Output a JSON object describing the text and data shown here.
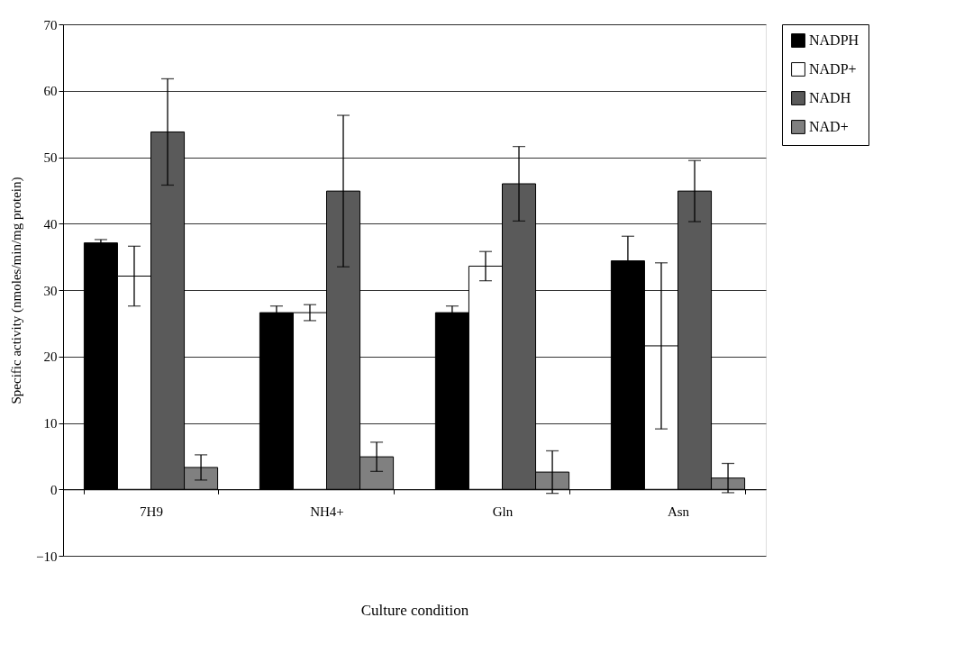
{
  "chart_data": {
    "type": "bar",
    "xlabel": "Culture condition",
    "ylabel": "Specific activity (nmoles/min/mg protein)",
    "categories": [
      "7H9",
      "NH4+",
      "Gln",
      "Asn"
    ],
    "series": [
      {
        "name": "NADPH",
        "color": "#000000",
        "values": [
          37.1,
          26.6,
          26.6,
          34.4
        ],
        "errors": [
          0.5,
          1.0,
          1.0,
          3.7
        ]
      },
      {
        "name": "NADP+",
        "color": "#ffffff",
        "values": [
          32.1,
          26.6,
          33.6,
          21.6
        ],
        "errors": [
          4.5,
          1.2,
          2.2,
          12.5
        ]
      },
      {
        "name": "NADH",
        "color": "#5a5a5a",
        "values": [
          53.8,
          44.9,
          46.0,
          44.9
        ],
        "errors": [
          8.0,
          11.4,
          5.6,
          4.6
        ]
      },
      {
        "name": "NAD+",
        "color": "#808080",
        "values": [
          3.3,
          4.9,
          2.6,
          1.7
        ],
        "errors": [
          1.9,
          2.2,
          3.2,
          2.2
        ]
      }
    ],
    "ylim": [
      -10,
      70
    ],
    "yticks": [
      -10,
      0,
      10,
      20,
      30,
      40,
      50,
      60,
      70
    ],
    "grid": "y",
    "legend": "right"
  }
}
